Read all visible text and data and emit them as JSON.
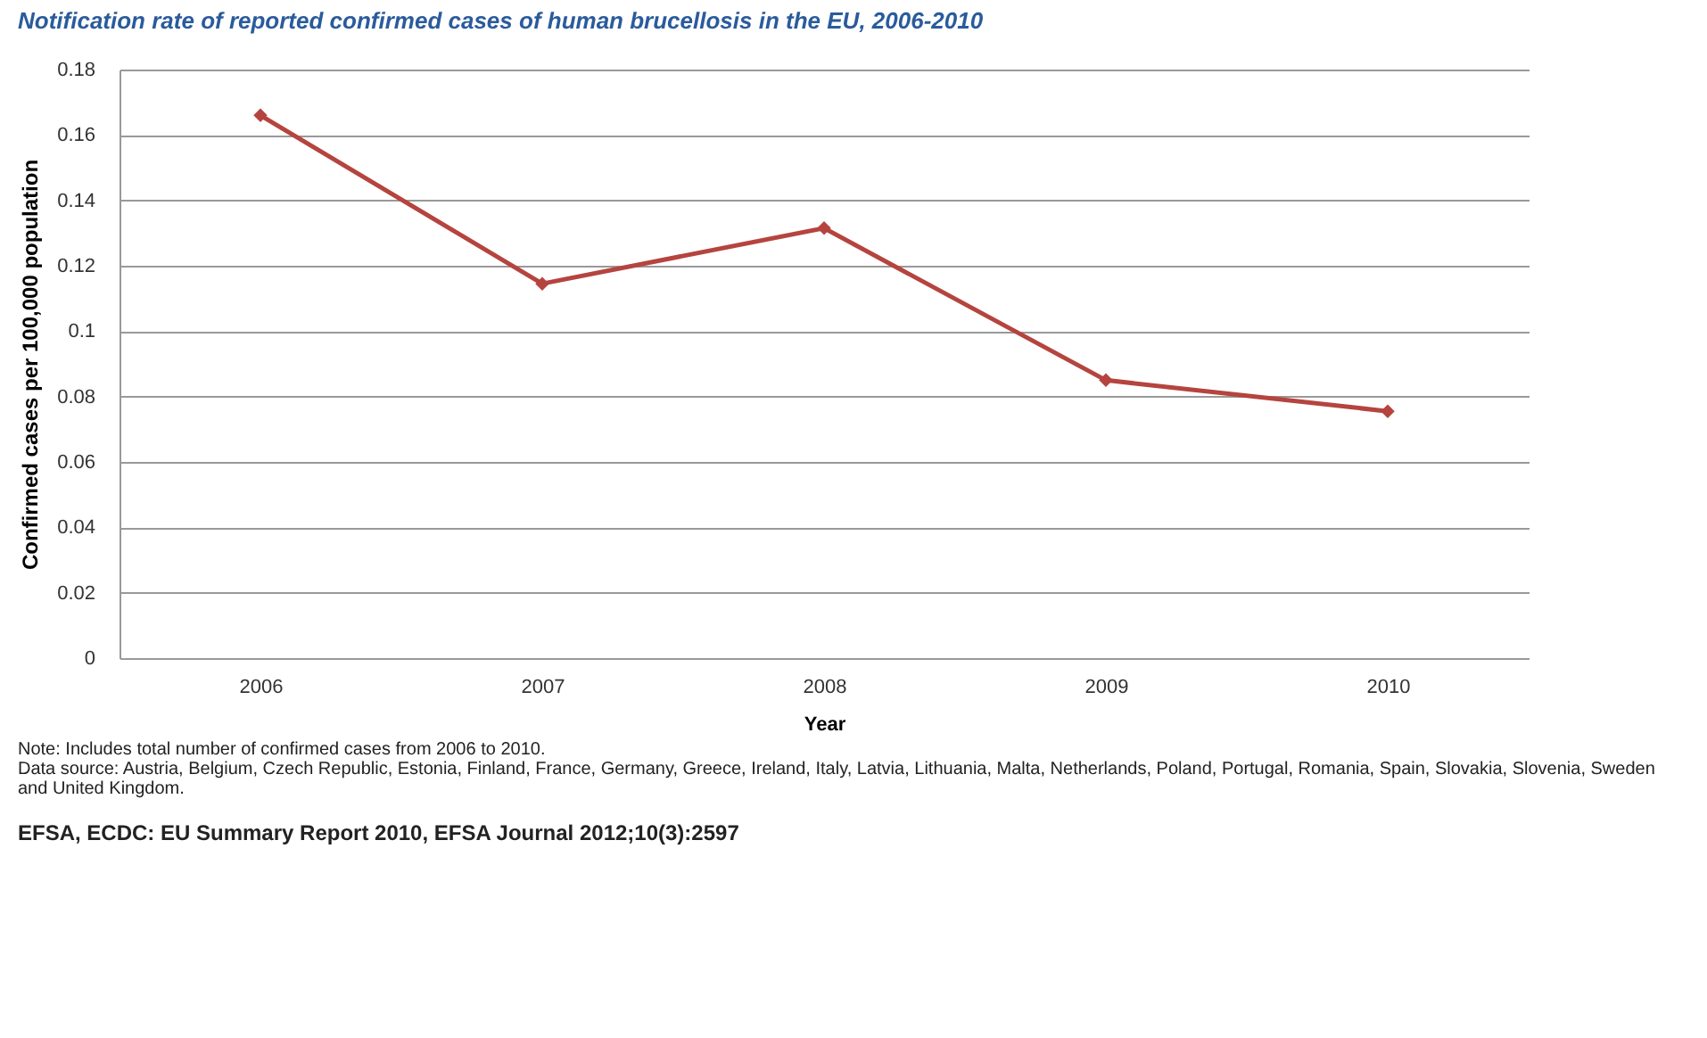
{
  "chart_data": {
    "type": "line",
    "title": "Notification rate of reported confirmed cases of human brucellosis in the EU, 2006-2010",
    "xlabel": "Year",
    "ylabel": "Confirmed cases per 100,000 population",
    "categories": [
      "2006",
      "2007",
      "2008",
      "2009",
      "2010"
    ],
    "series": [
      {
        "color": "#b5443f",
        "values": [
          0.166,
          0.1145,
          0.1315,
          0.085,
          0.0755
        ]
      }
    ],
    "ylim": [
      0,
      0.18
    ],
    "yticks": [
      0,
      0.02,
      0.04,
      0.06,
      0.08,
      0.1,
      0.12,
      0.14,
      0.16,
      0.18
    ],
    "grid": "y",
    "marker": "diamond",
    "line_style": "solid",
    "annotations": [
      "Note: Includes total number of confirmed cases from 2006 to 2010.",
      "Data source: Austria, Belgium, Czech Republic, Estonia, Finland, France, Germany, Greece, Ireland, Italy, Latvia, Lithuania, Malta, Netherlands, Poland, Portugal, Romania, Spain, Slovakia, Slovenia, Sweden and United Kingdom.",
      "EFSA, ECDC: EU Summary Report 2010, EFSA Journal 2012;10(3):2597"
    ]
  }
}
